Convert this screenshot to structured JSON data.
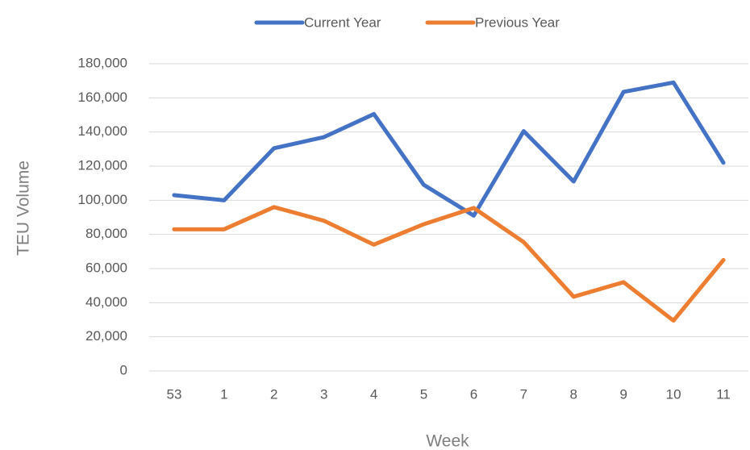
{
  "chart_data": {
    "type": "line",
    "x_label": "Week",
    "y_label": "TEU Volume",
    "categories": [
      "53",
      "1",
      "2",
      "3",
      "4",
      "5",
      "6",
      "7",
      "8",
      "9",
      "10",
      "11"
    ],
    "series": [
      {
        "name": "Current Year",
        "color": "#4472c4",
        "values": [
          103000,
          100000,
          130500,
          137000,
          150500,
          109000,
          91000,
          140500,
          111000,
          163500,
          169000,
          122000
        ]
      },
      {
        "name": "Previous Year",
        "color": "#ed7d31",
        "values": [
          83000,
          83000,
          96000,
          88000,
          74000,
          86000,
          95500,
          75500,
          43500,
          52000,
          29500,
          65000
        ]
      }
    ],
    "ylim": [
      0,
      180000
    ],
    "yticks": [
      0,
      {
        "value": 20000,
        "label": "20,000"
      },
      {
        "value": 40000,
        "label": "40,000"
      },
      {
        "value": 60000,
        "label": "60,000"
      },
      {
        "value": 80000,
        "label": "80,000"
      },
      {
        "value": 100000,
        "label": "100,000"
      },
      {
        "value": 120000,
        "label": "120,000"
      },
      {
        "value": 140000,
        "label": "140,000"
      },
      {
        "value": 160000,
        "label": "160,000"
      },
      {
        "value": 180000,
        "label": "180,000"
      }
    ],
    "grid": true,
    "legend": "top"
  }
}
